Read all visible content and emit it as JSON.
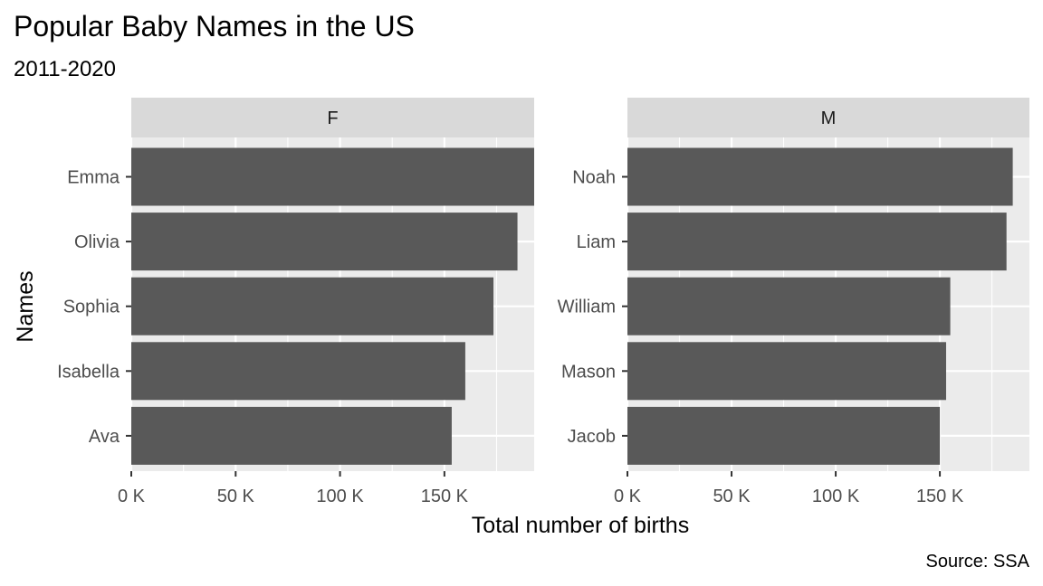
{
  "chart_data": {
    "type": "bar",
    "orientation": "horizontal",
    "title": "Popular Baby Names in the US",
    "subtitle": "2011-2020",
    "xlabel": "Total number of births",
    "ylabel": "Names",
    "caption": "Source: SSA",
    "xlim": [
      0,
      193000
    ],
    "x_ticks": [
      0,
      50000,
      100000,
      150000
    ],
    "x_tick_labels": [
      "0 K",
      "50 K",
      "100 K",
      "150 K"
    ],
    "grid": true,
    "legend": "none",
    "colors": {
      "bar": "#595959",
      "panel_background": "#ebebeb",
      "strip_background": "#d9d9d9",
      "grid": "#ffffff",
      "axis_tick": "#333333"
    },
    "facets": [
      {
        "label": "F",
        "categories": [
          "Emma",
          "Olivia",
          "Sophia",
          "Isabella",
          "Ava"
        ],
        "values": [
          193000,
          185000,
          173500,
          160000,
          153500
        ]
      },
      {
        "label": "M",
        "categories": [
          "Noah",
          "Liam",
          "William",
          "Mason",
          "Jacob"
        ],
        "values": [
          185000,
          182000,
          155000,
          153000,
          150000
        ]
      }
    ]
  }
}
